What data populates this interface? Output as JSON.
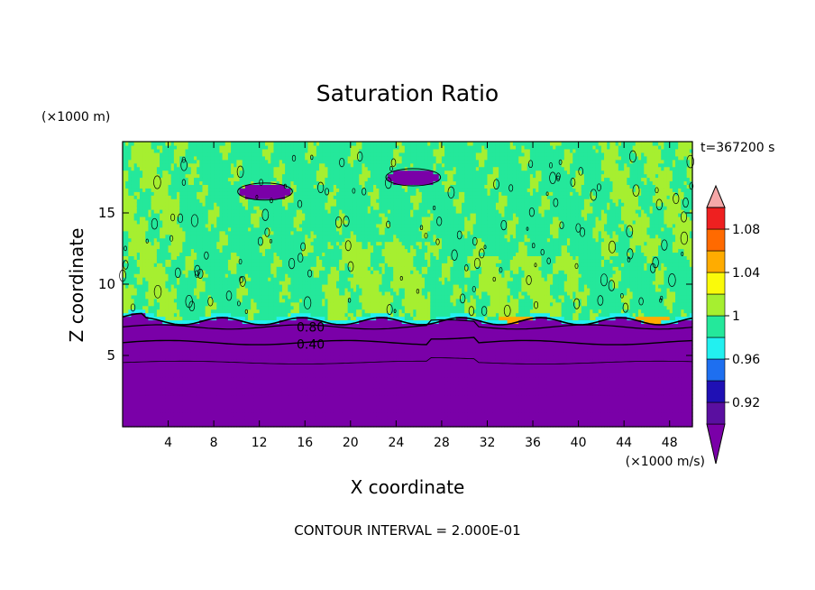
{
  "chart_data": {
    "type": "heatmap",
    "title": "Saturation Ratio",
    "y_unit": "(×1000 m)",
    "x_unit": "(×1000 m/s)",
    "time_label": "t=367200 s",
    "xlabel": "X coordinate",
    "ylabel": "Z coordinate",
    "footer": "CONTOUR INTERVAL = 2.000E-01",
    "xlim": [
      0,
      50
    ],
    "ylim": [
      0,
      20
    ],
    "x_ticks": [
      "4",
      "8",
      "12",
      "16",
      "20",
      "24",
      "28",
      "32",
      "36",
      "40",
      "44",
      "48"
    ],
    "y_ticks": [
      "5",
      "10",
      "15"
    ],
    "contour_labels": [
      {
        "text": "0.80",
        "x": 16.5,
        "z": 7.0
      },
      {
        "text": "0.40",
        "x": 16.5,
        "z": 5.8
      }
    ],
    "colorbar": {
      "tick_labels": [
        "0.92",
        "0.96",
        "1",
        "1.04",
        "1.08"
      ],
      "bins": [
        {
          "max": 0.9,
          "color": "#7a00a8"
        },
        {
          "max": 0.92,
          "color": "#5a0fa0"
        },
        {
          "max": 0.94,
          "color": "#1f10b4"
        },
        {
          "max": 0.96,
          "color": "#1e6ff0"
        },
        {
          "max": 0.98,
          "color": "#22f0f0"
        },
        {
          "max": 1.0,
          "color": "#24e89b"
        },
        {
          "max": 1.02,
          "color": "#a6ef30"
        },
        {
          "max": 1.04,
          "color": "#fafa0a"
        },
        {
          "max": 1.06,
          "color": "#ffac00"
        },
        {
          "max": 1.08,
          "color": "#ff6a00"
        },
        {
          "max": 1.1,
          "color": "#ee2020"
        },
        {
          "max": 9.99,
          "color": "#f5a8a8"
        }
      ]
    },
    "regions": {
      "dry_layer_top_z": 7.4,
      "upper_layer_value": 1.0,
      "lower_layer_value": 0.4,
      "moist_patches_value": 1.01,
      "dry_clouds": [
        {
          "x": 12.5,
          "z": 16.5,
          "value": 0.9
        },
        {
          "x": 25.5,
          "z": 17.5,
          "value": 0.9
        }
      ],
      "supersaturated_spots": [
        {
          "x": 34.5,
          "z": 7.6,
          "value": 1.05
        },
        {
          "x": 46.5,
          "z": 7.6,
          "value": 1.05
        }
      ]
    }
  }
}
